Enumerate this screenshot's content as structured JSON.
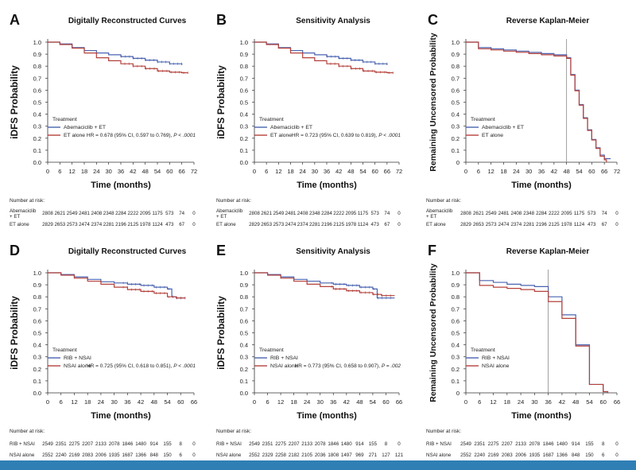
{
  "colors": {
    "series1": "#4a63b0",
    "series2": "#b5413b",
    "bottom_bar": "#2f7fb5",
    "vline": "#888888"
  },
  "labels": {
    "xlabel": "Time (months)",
    "ylabel_ifds": "iDFS Probability",
    "ylabel_reverse": "Remaining Uncensored Probability",
    "treatment": "Treatment",
    "number_at_risk": "Number at risk:"
  },
  "chart_data": [
    {
      "id": "A",
      "letter": "A",
      "type": "line",
      "title": "Digitally Reconstructed Curves",
      "xlim": [
        0,
        72
      ],
      "xticks": [
        0,
        6,
        12,
        18,
        24,
        30,
        36,
        42,
        48,
        54,
        60,
        66,
        72
      ],
      "ylim": [
        0,
        1
      ],
      "yticks": [
        "0.0",
        "0.1",
        "0.2",
        "0.3",
        "0.4",
        "0.5",
        "0.6",
        "0.7",
        "0.8",
        "0.9",
        "1.0"
      ],
      "series": [
        {
          "name": "Abemaciclib + ET",
          "x": [
            0,
            6,
            12,
            18,
            24,
            30,
            36,
            42,
            48,
            54,
            60,
            66
          ],
          "y": [
            1.0,
            0.985,
            0.955,
            0.93,
            0.91,
            0.895,
            0.88,
            0.865,
            0.85,
            0.835,
            0.82,
            0.81
          ]
        },
        {
          "name": "ET alone",
          "x": [
            0,
            6,
            12,
            18,
            24,
            30,
            36,
            42,
            48,
            54,
            60,
            66,
            69
          ],
          "y": [
            1.0,
            0.98,
            0.95,
            0.91,
            0.87,
            0.845,
            0.82,
            0.8,
            0.78,
            0.76,
            0.75,
            0.745,
            0.745
          ]
        }
      ],
      "hr": "HR = 0.678 (95% CI, 0.597 to 0.769), ",
      "pval": "P < .0001",
      "risk_rows": [
        {
          "label": "Abemaciclib + ET",
          "values": [
            "2808",
            "2621",
            "2549",
            "2481",
            "2408",
            "2348",
            "2284",
            "2222",
            "2095",
            "1175",
            "573",
            "74",
            "0"
          ]
        },
        {
          "label": "ET alone",
          "values": [
            "2829",
            "2653",
            "2573",
            "2474",
            "2374",
            "2281",
            "2196",
            "2125",
            "1978",
            "1124",
            "473",
            "67",
            "0"
          ]
        }
      ]
    },
    {
      "id": "B",
      "letter": "B",
      "type": "line",
      "title": "Sensitivity Analysis",
      "xlim": [
        0,
        72
      ],
      "xticks": [
        0,
        6,
        12,
        18,
        24,
        30,
        36,
        42,
        48,
        54,
        60,
        66,
        72
      ],
      "ylim": [
        0,
        1
      ],
      "yticks": [
        "0.0",
        "0.1",
        "0.2",
        "0.3",
        "0.4",
        "0.5",
        "0.6",
        "0.7",
        "0.8",
        "0.9",
        "1.0"
      ],
      "series": [
        {
          "name": "Abemaciclib + ET",
          "x": [
            0,
            6,
            12,
            18,
            24,
            30,
            36,
            42,
            48,
            54,
            60,
            66
          ],
          "y": [
            1.0,
            0.985,
            0.955,
            0.93,
            0.91,
            0.895,
            0.88,
            0.865,
            0.85,
            0.835,
            0.82,
            0.81
          ]
        },
        {
          "name": "ET alone",
          "x": [
            0,
            6,
            12,
            18,
            24,
            30,
            36,
            42,
            48,
            54,
            60,
            66,
            69
          ],
          "y": [
            1.0,
            0.98,
            0.95,
            0.91,
            0.87,
            0.845,
            0.82,
            0.8,
            0.78,
            0.76,
            0.75,
            0.745,
            0.745
          ]
        }
      ],
      "hr": "HR = 0.723 (95% CI, 0.639 to 0.819), ",
      "pval": "P < .0001",
      "risk_rows": [
        {
          "label": "Abemaciclib + ET",
          "values": [
            "2808",
            "2621",
            "2549",
            "2481",
            "2408",
            "2348",
            "2284",
            "2222",
            "2095",
            "1175",
            "573",
            "74",
            "0"
          ]
        },
        {
          "label": "ET alone",
          "values": [
            "2829",
            "2653",
            "2573",
            "2474",
            "2374",
            "2281",
            "2196",
            "2125",
            "1978",
            "1124",
            "473",
            "67",
            "0"
          ]
        }
      ]
    },
    {
      "id": "C",
      "letter": "C",
      "type": "line",
      "title": "Reverse Kaplan-Meier",
      "xlim": [
        0,
        72
      ],
      "xticks": [
        0,
        6,
        12,
        18,
        24,
        30,
        36,
        42,
        48,
        54,
        60,
        66,
        72
      ],
      "ylim": [
        0,
        1
      ],
      "yticks": [
        "0",
        "0.1",
        "0.2",
        "0.3",
        "0.4",
        "0.5",
        "0.6",
        "0.7",
        "0.8",
        "0.9",
        "1.0"
      ],
      "vline": 48,
      "series": [
        {
          "name": "Abemaciclib + ET",
          "x": [
            0,
            6,
            12,
            18,
            24,
            30,
            36,
            42,
            48,
            50,
            52,
            54,
            56,
            58,
            60,
            62,
            64,
            66,
            69
          ],
          "y": [
            1.0,
            0.955,
            0.945,
            0.935,
            0.925,
            0.915,
            0.905,
            0.895,
            0.87,
            0.73,
            0.6,
            0.48,
            0.37,
            0.27,
            0.19,
            0.12,
            0.06,
            0.03,
            0.03
          ]
        },
        {
          "name": "ET alone",
          "x": [
            0,
            6,
            12,
            18,
            24,
            30,
            36,
            42,
            48,
            50,
            52,
            54,
            56,
            58,
            60,
            62,
            64,
            66,
            67
          ],
          "y": [
            1.0,
            0.945,
            0.935,
            0.925,
            0.915,
            0.905,
            0.895,
            0.885,
            0.865,
            0.725,
            0.595,
            0.475,
            0.365,
            0.265,
            0.185,
            0.115,
            0.05,
            0.02,
            0.0
          ]
        }
      ],
      "risk_rows": [
        {
          "label": "Abemaciclib + ET",
          "values": [
            "2808",
            "2621",
            "2549",
            "2481",
            "2408",
            "2348",
            "2284",
            "2222",
            "2095",
            "1175",
            "573",
            "74",
            "0"
          ]
        },
        {
          "label": "ET alone",
          "values": [
            "2829",
            "2653",
            "2573",
            "2474",
            "2374",
            "2281",
            "2196",
            "2125",
            "1978",
            "1124",
            "473",
            "67",
            "0"
          ]
        }
      ]
    },
    {
      "id": "D",
      "letter": "D",
      "type": "line",
      "title": "Digitally Reconstructed Curves",
      "xlim": [
        0,
        66
      ],
      "xticks": [
        0,
        6,
        12,
        18,
        24,
        30,
        36,
        42,
        48,
        54,
        60,
        66
      ],
      "ylim": [
        0,
        1
      ],
      "yticks": [
        "0.0",
        "0.1",
        "0.2",
        "0.3",
        "0.4",
        "0.5",
        "0.6",
        "0.7",
        "0.8",
        "0.9",
        "1.0"
      ],
      "series": [
        {
          "name": "RIB + NSAI",
          "x": [
            0,
            6,
            12,
            18,
            24,
            30,
            36,
            42,
            48,
            54,
            56,
            58,
            60,
            62
          ],
          "y": [
            1.0,
            0.985,
            0.965,
            0.945,
            0.925,
            0.915,
            0.905,
            0.895,
            0.88,
            0.865,
            0.8,
            0.79,
            0.79,
            0.79
          ]
        },
        {
          "name": "NSAI alone",
          "x": [
            0,
            6,
            12,
            18,
            24,
            30,
            36,
            42,
            48,
            54,
            58,
            60,
            62
          ],
          "y": [
            1.0,
            0.98,
            0.955,
            0.93,
            0.905,
            0.88,
            0.86,
            0.845,
            0.83,
            0.8,
            0.79,
            0.79,
            0.79
          ]
        }
      ],
      "hr": "HR = 0.725 (95% CI, 0.618 to 0.851), ",
      "pval": "P < .0001",
      "risk_rows": [
        {
          "label": "RIB + NSAI",
          "values": [
            "2549",
            "2351",
            "2275",
            "2207",
            "2133",
            "2078",
            "1846",
            "1480",
            "914",
            "155",
            "8",
            "0"
          ]
        },
        {
          "label": "NSAI alone",
          "values": [
            "2552",
            "2240",
            "2169",
            "2083",
            "2006",
            "1935",
            "1687",
            "1366",
            "848",
            "150",
            "6",
            "0"
          ]
        }
      ]
    },
    {
      "id": "E",
      "letter": "E",
      "type": "line",
      "title": "Sensitivity Analysis",
      "xlim": [
        0,
        66
      ],
      "xticks": [
        0,
        6,
        12,
        18,
        24,
        30,
        36,
        42,
        48,
        54,
        60,
        66
      ],
      "ylim": [
        0,
        1
      ],
      "yticks": [
        "0.0",
        "0.1",
        "0.2",
        "0.3",
        "0.4",
        "0.5",
        "0.6",
        "0.7",
        "0.8",
        "0.9",
        "1.0"
      ],
      "series": [
        {
          "name": "RIB + NSAI",
          "x": [
            0,
            6,
            12,
            18,
            24,
            30,
            36,
            42,
            48,
            54,
            56,
            58,
            60,
            62,
            64
          ],
          "y": [
            1.0,
            0.985,
            0.965,
            0.945,
            0.93,
            0.915,
            0.905,
            0.895,
            0.88,
            0.865,
            0.79,
            0.79,
            0.79,
            0.79,
            0.79
          ]
        },
        {
          "name": "NSAI alone",
          "x": [
            0,
            6,
            12,
            18,
            24,
            30,
            36,
            42,
            48,
            54,
            58,
            60,
            62,
            64
          ],
          "y": [
            1.0,
            0.98,
            0.955,
            0.93,
            0.905,
            0.885,
            0.865,
            0.85,
            0.835,
            0.82,
            0.81,
            0.81,
            0.81,
            0.81
          ]
        }
      ],
      "hr": "HR = 0.773 (95% CI, 0.658 to 0.907), ",
      "pval": "P = .002",
      "risk_rows": [
        {
          "label": "RIB + NSAI",
          "values": [
            "2549",
            "2351",
            "2275",
            "2207",
            "2133",
            "2078",
            "1846",
            "1480",
            "914",
            "155",
            "8",
            "0"
          ]
        },
        {
          "label": "NSAI alone",
          "values": [
            "2552",
            "2329",
            "2258",
            "2182",
            "2105",
            "2036",
            "1808",
            "1497",
            "969",
            "271",
            "127",
            "121"
          ]
        }
      ]
    },
    {
      "id": "F",
      "letter": "F",
      "type": "line",
      "title": "Reverse Kaplan-Meier",
      "xlim": [
        0,
        66
      ],
      "xticks": [
        0,
        6,
        12,
        18,
        24,
        30,
        36,
        42,
        48,
        54,
        60,
        66
      ],
      "ylim": [
        0,
        1
      ],
      "yticks": [
        "0",
        "0.1",
        "0.2",
        "0.3",
        "0.4",
        "0.5",
        "0.6",
        "0.7",
        "0.8",
        "0.9",
        "1.0"
      ],
      "vline": 36,
      "series": [
        {
          "name": "RIB + NSAI",
          "x": [
            0,
            6,
            12,
            18,
            24,
            30,
            36,
            42,
            48,
            54,
            60,
            62
          ],
          "y": [
            1.0,
            0.935,
            0.92,
            0.905,
            0.895,
            0.885,
            0.8,
            0.65,
            0.4,
            0.07,
            0.01,
            0.0
          ]
        },
        {
          "name": "NSAI alone",
          "x": [
            0,
            6,
            12,
            18,
            24,
            30,
            36,
            42,
            48,
            54,
            60,
            62
          ],
          "y": [
            1.0,
            0.895,
            0.88,
            0.87,
            0.86,
            0.845,
            0.76,
            0.62,
            0.39,
            0.07,
            0.01,
            0.0
          ]
        }
      ],
      "risk_rows": [
        {
          "label": "RIB + NSAI",
          "values": [
            "2549",
            "2351",
            "2275",
            "2207",
            "2133",
            "2078",
            "1846",
            "1480",
            "914",
            "155",
            "8",
            "0"
          ]
        },
        {
          "label": "NSAI alone",
          "values": [
            "2552",
            "2240",
            "2169",
            "2083",
            "2006",
            "1935",
            "1687",
            "1366",
            "848",
            "150",
            "6",
            "0"
          ]
        }
      ]
    }
  ]
}
